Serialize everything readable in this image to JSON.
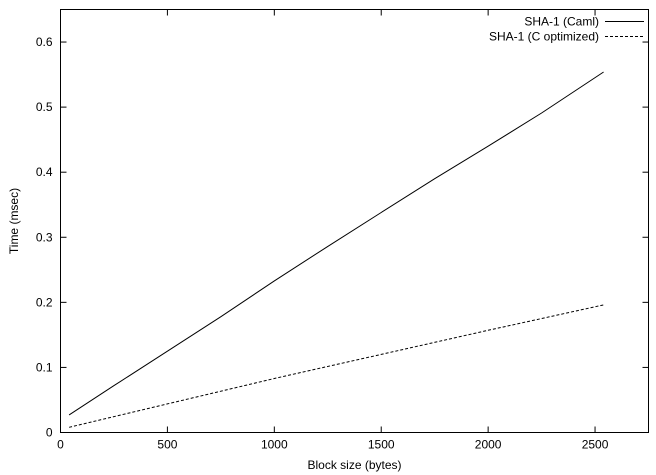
{
  "chart_data": {
    "type": "line",
    "title": "",
    "xlabel": "Block size (bytes)",
    "ylabel": "Time (msec)",
    "xlim": [
      0,
      2750
    ],
    "ylim": [
      0,
      0.65
    ],
    "xticks": [
      0,
      500,
      1000,
      1500,
      2000,
      2500
    ],
    "xtick_labels": [
      "0",
      "500",
      "1000",
      "1500",
      "2000",
      "2500"
    ],
    "yticks": [
      0,
      0.1,
      0.2,
      0.3,
      0.4,
      0.5,
      0.6
    ],
    "ytick_labels": [
      "0",
      "0.1",
      "0.2",
      "0.3",
      "0.4",
      "0.5",
      "0.6"
    ],
    "grid": false,
    "legend_position": "top-right",
    "series": [
      {
        "name": "SHA-1 (Caml)",
        "style": "solid",
        "color": "#000000",
        "x": [
          40,
          250,
          500,
          750,
          1000,
          1250,
          1500,
          1750,
          2000,
          2250,
          2540
        ],
        "y": [
          0.027,
          0.072,
          0.125,
          0.178,
          0.233,
          0.286,
          0.338,
          0.39,
          0.44,
          0.491,
          0.554
        ]
      },
      {
        "name": "SHA-1 (C optimized)",
        "style": "dashed",
        "color": "#000000",
        "x": [
          40,
          500,
          1000,
          1500,
          2000,
          2540
        ],
        "y": [
          0.008,
          0.044,
          0.083,
          0.12,
          0.157,
          0.196
        ]
      }
    ]
  }
}
